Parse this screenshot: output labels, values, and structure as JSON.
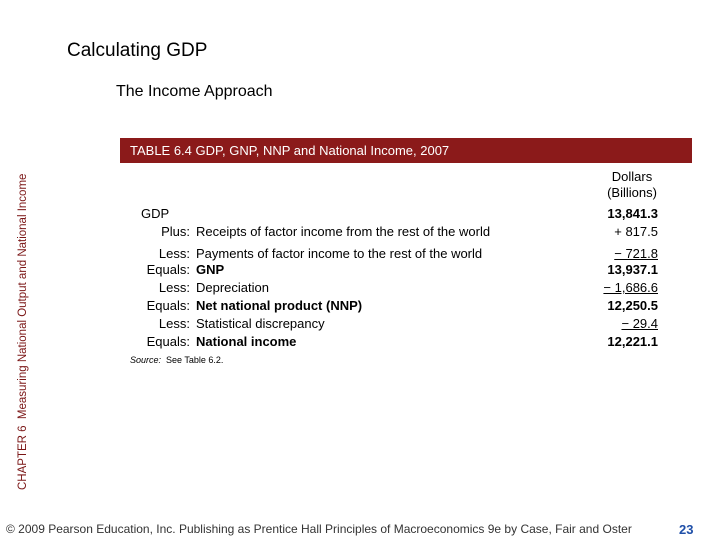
{
  "header": {
    "title": "Calculating GDP",
    "subtitle": "The Income Approach"
  },
  "sidebar": {
    "chapter": "CHAPTER 6",
    "text": "Measuring National Output and National Income"
  },
  "table": {
    "title": "TABLE 6.4  GDP, GNP, NNP and National Income, 2007",
    "column_header": "Dollars (Billions)",
    "rows": [
      {
        "label": "GDP",
        "value": "13,841.3",
        "bold": true
      },
      {
        "op": "Plus:",
        "label": "Receipts of factor income from the rest of the world",
        "value": "+ 817.5"
      },
      {
        "op": "Less:",
        "label": "Payments of factor income to the rest of the world",
        "value": "− 721.8",
        "underline": true
      },
      {
        "op": "Equals:",
        "label": "GNP",
        "value": "13,937.1",
        "bold": true
      },
      {
        "op": "Less:",
        "label": "Depreciation",
        "value": "− 1,686.6",
        "underline": true
      },
      {
        "op": "Equals:",
        "label": "Net national product (NNP)",
        "value": "12,250.5",
        "bold": true
      },
      {
        "op": "Less:",
        "label": "Statistical discrepancy",
        "value": "− 29.4",
        "underline": true
      },
      {
        "op": "Equals:",
        "label": "National income",
        "value": "12,221.1",
        "bold": true
      }
    ],
    "source_label": "Source:",
    "source_text": "See Table 6.2."
  },
  "footer": {
    "text": "© 2009 Pearson Education, Inc. Publishing as Prentice Hall  Principles of Macroeconomics 9e by Case, Fair and Oster",
    "page": "23"
  }
}
